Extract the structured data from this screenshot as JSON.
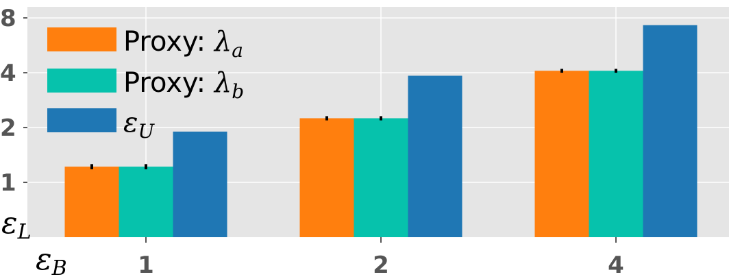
{
  "chart_data": {
    "type": "bar",
    "y_scale": "log2",
    "ylim": [
      0.5,
      9.2
    ],
    "y_ticks": [
      1,
      2,
      4,
      8
    ],
    "y_tick_labels": [
      "1",
      "2",
      "4",
      "8"
    ],
    "categories": [
      "1",
      "2",
      "4"
    ],
    "x_axis_symbol": "ε",
    "x_axis_subscript": "B",
    "y_axis_symbol": "ε",
    "y_axis_subscript": "L",
    "grid": true,
    "legend_position": "top-left",
    "series": [
      {
        "name_prefix": "Proxy: ",
        "name_symbol": "λ",
        "name_subscript": "a",
        "color": "#ff7f0e",
        "values": [
          1.22,
          2.25,
          4.1
        ],
        "error": [
          0.04,
          0.06,
          0.1
        ]
      },
      {
        "name_prefix": "Proxy: ",
        "name_symbol": "λ",
        "name_subscript": "b",
        "color": "#06c2ac",
        "values": [
          1.22,
          2.25,
          4.1
        ],
        "error": [
          0.04,
          0.06,
          0.1
        ]
      },
      {
        "name_prefix": "",
        "name_symbol": "ε",
        "name_subscript": "U",
        "color": "#1f77b4",
        "values": [
          1.9,
          3.85,
          7.3
        ],
        "error": null
      }
    ],
    "colors": {
      "background": "#e5e5e5",
      "grid": "#ffffff",
      "error_bar": "#000000"
    }
  }
}
